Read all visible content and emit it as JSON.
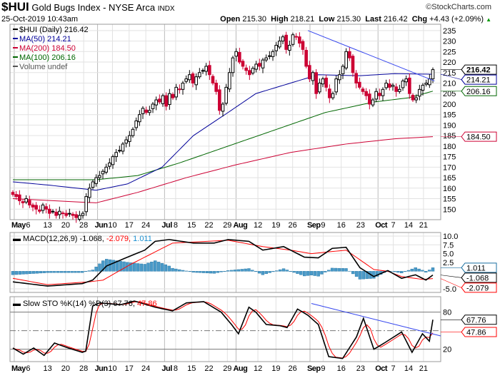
{
  "header": {
    "symbol": "$HUI",
    "name": "Gold Bugs Index - NYSE Arca",
    "exchange": "INDX",
    "brand": "©StockCharts.com",
    "date": "25-Oct-2019 10:43am",
    "open_label": "Open",
    "open": "215.30",
    "high_label": "High",
    "high": "218.21",
    "low_label": "Low",
    "low": "215.30",
    "last_label": "Last",
    "last": "216.42",
    "chg_label": "Chg",
    "chg": "+4.43 (+2.09%)",
    "chg_icon": "triangle-up-icon"
  },
  "chart_data": [
    {
      "type": "candlestick",
      "title": "$HUI (Daily) 216.42",
      "legend": [
        {
          "label": "$HUI (Daily) 216.42",
          "color": "#000000"
        },
        {
          "label": "MA(50) 214.21",
          "color": "#000099"
        },
        {
          "label": "MA(200) 184.50",
          "color": "#cc0033"
        },
        {
          "label": "MA(100) 206.16",
          "color": "#006600"
        },
        {
          "label": "Volume undef",
          "color": "#555555"
        }
      ],
      "ylim": [
        145,
        238
      ],
      "yticks": [
        150,
        155,
        160,
        165,
        170,
        175,
        180,
        185,
        190,
        195,
        200,
        205,
        210,
        215,
        220,
        225,
        230,
        235
      ],
      "last_labels": [
        {
          "value": 216.42,
          "text": "216.42",
          "color": "#000000"
        },
        {
          "value": 214.21,
          "text": "214.21",
          "color": "#000099"
        },
        {
          "value": 206.16,
          "text": "206.16",
          "color": "#006600"
        },
        {
          "value": 184.5,
          "text": "184.50",
          "color": "#cc0033"
        }
      ],
      "closes": [
        157,
        156,
        154,
        153,
        155,
        152,
        151,
        150,
        149,
        152,
        150,
        148,
        149,
        147,
        149,
        148,
        147,
        148,
        147,
        146,
        147,
        148,
        156,
        160,
        163,
        165,
        166,
        168,
        170,
        172,
        175,
        177,
        178,
        181,
        183,
        185,
        188,
        192,
        195,
        198,
        196,
        197,
        200,
        202,
        201,
        204,
        199,
        205,
        203,
        208,
        207,
        210,
        212,
        214,
        210,
        213,
        215,
        216,
        218,
        214,
        210,
        206,
        197,
        200,
        208,
        215,
        222,
        225,
        220,
        218,
        216,
        214,
        217,
        219,
        218,
        221,
        222,
        223,
        225,
        228,
        230,
        232,
        226,
        228,
        233,
        232,
        229,
        226,
        218,
        212,
        215,
        205,
        210,
        212,
        208,
        203,
        205,
        212,
        214,
        218,
        225,
        222,
        215,
        210,
        208,
        206,
        204,
        200,
        202,
        206,
        204,
        207,
        210,
        208,
        209,
        206,
        207,
        211,
        212,
        205,
        202,
        203,
        207,
        209,
        210,
        212,
        216.42
      ],
      "ma50": [
        [
          0,
          163
        ],
        [
          10,
          161.5
        ],
        [
          24,
          159
        ],
        [
          33,
          162
        ],
        [
          43,
          170
        ],
        [
          52,
          185
        ],
        [
          62,
          196
        ],
        [
          70,
          205
        ],
        [
          80,
          210
        ],
        [
          88,
          214
        ],
        [
          100,
          213.5
        ],
        [
          110,
          214.5
        ],
        [
          121,
          214.21
        ]
      ],
      "ma100": [
        [
          0,
          164
        ],
        [
          24,
          164
        ],
        [
          36,
          166
        ],
        [
          48,
          172
        ],
        [
          62,
          180
        ],
        [
          76,
          188
        ],
        [
          90,
          196
        ],
        [
          104,
          201
        ],
        [
          114,
          203
        ],
        [
          121,
          206.16
        ]
      ],
      "ma200": [
        [
          0,
          155
        ],
        [
          12,
          154
        ],
        [
          24,
          153
        ],
        [
          36,
          158
        ],
        [
          50,
          165
        ],
        [
          64,
          171
        ],
        [
          80,
          177
        ],
        [
          96,
          181
        ],
        [
          110,
          183.5
        ],
        [
          121,
          184.5
        ]
      ],
      "trendline": [
        [
          85,
          235
        ],
        [
          121.5,
          211
        ]
      ]
    },
    {
      "type": "line",
      "title": "MACD(12,26,9)",
      "values_label": "-1.068",
      "signal_label": "-2.079",
      "hist_label": "1.011",
      "ylim": [
        -6,
        11
      ],
      "yticks": [
        10,
        7.5,
        5,
        2.5,
        -5
      ],
      "ytick_labels": [
        "10.0",
        "7.5",
        "5.0",
        "2.5",
        "-5.0"
      ],
      "macd": [
        [
          0,
          -3
        ],
        [
          10,
          -4.2
        ],
        [
          20,
          -3.5
        ],
        [
          23,
          -2.5
        ],
        [
          27,
          1.5
        ],
        [
          33,
          4
        ],
        [
          38,
          6
        ],
        [
          41,
          8.5
        ],
        [
          45,
          9
        ],
        [
          52,
          8
        ],
        [
          58,
          8
        ],
        [
          62,
          9
        ],
        [
          68,
          8.5
        ],
        [
          72,
          6
        ],
        [
          78,
          7
        ],
        [
          84,
          4
        ],
        [
          88,
          3.8
        ],
        [
          92,
          6.5
        ],
        [
          96,
          6.8
        ],
        [
          100,
          1
        ],
        [
          104,
          -1.5
        ],
        [
          108,
          0.2
        ],
        [
          112,
          -2
        ],
        [
          116,
          -1
        ],
        [
          119,
          -2.5
        ],
        [
          121,
          -1.068
        ]
      ],
      "signal": [
        [
          0,
          -2
        ],
        [
          10,
          -3.8
        ],
        [
          22,
          -3
        ],
        [
          26,
          -2.5
        ],
        [
          34,
          2
        ],
        [
          42,
          6
        ],
        [
          46,
          8
        ],
        [
          62,
          8.8
        ],
        [
          72,
          7
        ],
        [
          80,
          6
        ],
        [
          86,
          5
        ],
        [
          96,
          6
        ],
        [
          104,
          0.5
        ],
        [
          108,
          0
        ],
        [
          112,
          -1.5
        ],
        [
          118,
          -2.3
        ],
        [
          121,
          -2.079
        ]
      ],
      "last_labels": [
        {
          "value": 1.011,
          "text": "1.011",
          "color": "#1a6fa0"
        },
        {
          "value": -1.068,
          "text": "-1.068",
          "color": "#000000"
        },
        {
          "value": -2.079,
          "text": "-2.079",
          "color": "#ff0000"
        }
      ]
    },
    {
      "type": "line",
      "title": "Slow STO %K(14) %D(3)",
      "k_label": "67.76",
      "d_label": "47.86",
      "ylim": [
        0,
        105
      ],
      "yticks": [
        80,
        20
      ],
      "ytick_labels": [
        "80",
        "20"
      ],
      "k": [
        [
          0,
          22
        ],
        [
          3,
          12
        ],
        [
          6,
          22
        ],
        [
          9,
          10
        ],
        [
          12,
          30
        ],
        [
          16,
          22
        ],
        [
          20,
          15
        ],
        [
          21,
          17
        ],
        [
          23,
          90
        ],
        [
          25,
          95
        ],
        [
          31,
          92
        ],
        [
          35,
          98
        ],
        [
          41,
          88
        ],
        [
          46,
          82
        ],
        [
          50,
          95
        ],
        [
          55,
          97
        ],
        [
          60,
          80
        ],
        [
          63,
          60
        ],
        [
          65,
          45
        ],
        [
          68,
          88
        ],
        [
          70,
          80
        ],
        [
          73,
          60
        ],
        [
          77,
          58
        ],
        [
          79,
          55
        ],
        [
          82,
          85
        ],
        [
          85,
          75
        ],
        [
          88,
          60
        ],
        [
          91,
          8
        ],
        [
          95,
          5
        ],
        [
          99,
          40
        ],
        [
          101,
          70
        ],
        [
          104,
          20
        ],
        [
          107,
          30
        ],
        [
          112,
          48
        ],
        [
          115,
          15
        ],
        [
          118,
          45
        ],
        [
          120,
          33
        ],
        [
          121,
          67.76
        ]
      ],
      "trendline": [
        [
          86,
          94
        ],
        [
          124,
          37
        ]
      ],
      "last_labels": [
        {
          "value": 67.76,
          "text": "67.76",
          "color": "#000000"
        },
        {
          "value": 47.86,
          "text": "47.86",
          "color": "#ff0000"
        }
      ]
    }
  ],
  "date_ticks": [
    {
      "d": 0.4,
      "t": "May",
      "m": true
    },
    {
      "d": 4.4,
      "t": "6"
    },
    {
      "d": 10,
      "t": "13"
    },
    {
      "d": 15.2,
      "t": "20"
    },
    {
      "d": 20.4,
      "t": "28"
    },
    {
      "d": 24.4,
      "t": "Jun",
      "m": true
    },
    {
      "d": 28.7,
      "t": "10"
    },
    {
      "d": 33.5,
      "t": "17"
    },
    {
      "d": 38.3,
      "t": "24"
    },
    {
      "d": 43.7,
      "t": "Jul",
      "m": true
    },
    {
      "d": 46.9,
      "t": "8"
    },
    {
      "d": 51.5,
      "t": "15"
    },
    {
      "d": 56.5,
      "t": "22"
    },
    {
      "d": 61.8,
      "t": "29"
    },
    {
      "d": 64.3,
      "t": "Aug",
      "m": true
    },
    {
      "d": 70.6,
      "t": "12"
    },
    {
      "d": 75.8,
      "t": "19"
    },
    {
      "d": 80.6,
      "t": "26"
    },
    {
      "d": 85.6,
      "t": "Sep",
      "m": true
    },
    {
      "d": 89.4,
      "t": "9"
    },
    {
      "d": 94.6,
      "t": "16"
    },
    {
      "d": 100.2,
      "t": "23"
    },
    {
      "d": 105.2,
      "t": "Oct",
      "m": true
    },
    {
      "d": 109.6,
      "t": "7"
    },
    {
      "d": 114,
      "t": "14"
    },
    {
      "d": 118.3,
      "t": "21"
    }
  ]
}
